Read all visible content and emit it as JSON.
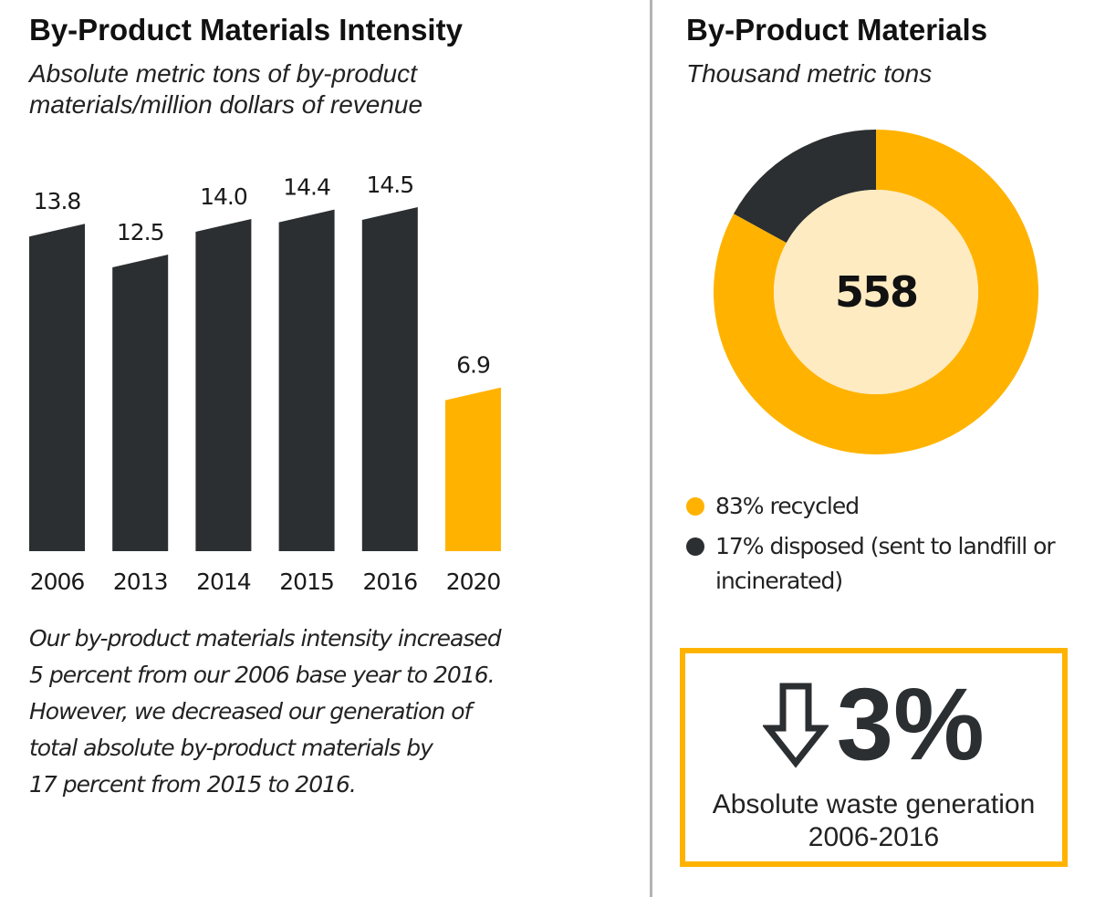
{
  "left": {
    "title": "By-Product Materials Intensity",
    "subtitle": "Absolute metric tons of by-product materials/million dollars of revenue",
    "note_lines": [
      "Our by-product materials intensity increased",
      "5 percent from our 2006 base year to 2016.",
      "However, we decreased our generation of",
      "total absolute by-product materials by",
      "17 percent from 2015 to 2016."
    ]
  },
  "right": {
    "title": "By-Product Materials",
    "subtitle": "Thousand metric tons",
    "donut_center": "558",
    "legend": [
      {
        "label": "83% recycled",
        "color": "#ffb300"
      },
      {
        "label": "17% disposed (sent to landfill or incinerated)",
        "color": "#2b2f31"
      }
    ],
    "stat": {
      "icon": "arrow-down-outline-icon",
      "value": "3%",
      "label": "Absolute waste generation 2006-2016"
    }
  },
  "colors": {
    "dark": "#2b2f31",
    "accent": "#ffb300",
    "donut_center_fill": "#ffebc2"
  },
  "chart_data": [
    {
      "type": "bar",
      "title": "By-Product Materials Intensity",
      "subtitle": "Absolute metric tons of by-product materials/million dollars of revenue",
      "categories": [
        "2006",
        "2013",
        "2014",
        "2015",
        "2016",
        "2020"
      ],
      "values": [
        13.8,
        12.5,
        14.0,
        14.4,
        14.5,
        6.9
      ],
      "data_labels": [
        "13.8",
        "12.5",
        "14.0",
        "14.4",
        "14.5",
        "6.9"
      ],
      "bar_colors": [
        "#2b2f31",
        "#2b2f31",
        "#2b2f31",
        "#2b2f31",
        "#2b2f31",
        "#ffb300"
      ],
      "ylim": [
        0,
        15
      ],
      "grid": false
    },
    {
      "type": "pie",
      "style": "donut",
      "title": "By-Product Materials",
      "subtitle": "Thousand metric tons",
      "total": 558,
      "slices": [
        {
          "label": "recycled",
          "value": 83,
          "color": "#ffb300"
        },
        {
          "label": "disposed",
          "value": 17,
          "color": "#2b2f31"
        }
      ],
      "legend_position": "bottom"
    }
  ]
}
